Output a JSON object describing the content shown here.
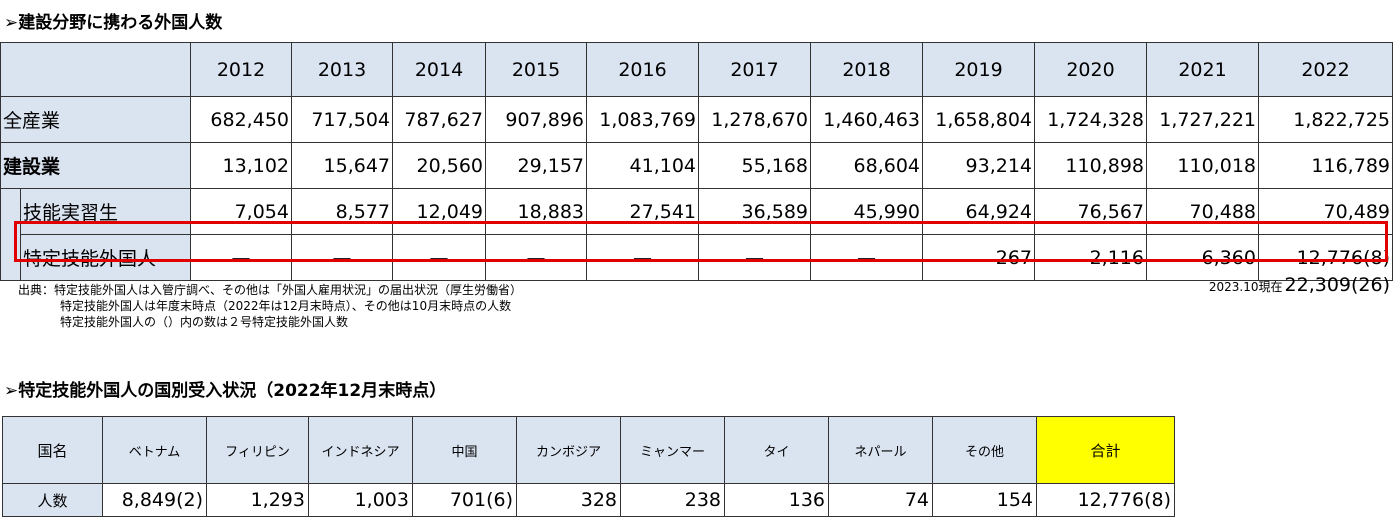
{
  "section1": {
    "heading": "➢建設分野に携わる外国人数",
    "years": [
      "2012",
      "2013",
      "2014",
      "2015",
      "2016",
      "2017",
      "2018",
      "2019",
      "2020",
      "2021",
      "2022"
    ],
    "rows": [
      {
        "label": "全産業",
        "values": [
          "682,450",
          "717,504",
          "787,627",
          "907,896",
          "1,083,769",
          "1,278,670",
          "1,460,463",
          "1,658,804",
          "1,724,328",
          "1,727,221",
          "1,822,725"
        ]
      },
      {
        "label": "建設業",
        "values": [
          "13,102",
          "15,647",
          "20,560",
          "29,157",
          "41,104",
          "55,168",
          "68,604",
          "93,214",
          "110,898",
          "110,018",
          "116,789"
        ]
      },
      {
        "label": "技能実習生",
        "values": [
          "7,054",
          "8,577",
          "12,049",
          "18,883",
          "27,541",
          "36,589",
          "45,990",
          "64,924",
          "76,567",
          "70,488",
          "70,489"
        ]
      },
      {
        "label": "特定技能外国人",
        "values": [
          "—",
          "—",
          "—",
          "—",
          "—",
          "—",
          "—",
          "267",
          "2,116",
          "6,360",
          "12,776(8)"
        ]
      }
    ],
    "notes": [
      "出典：特定技能外国人は入管庁調べ、その他は「外国人雇用状況」の届出状況（厚生労働省）",
      "特定技能外国人は年度末時点（2022年は12月末時点）、その他は10月末時点の人数",
      "特定技能外国人の（）内の数は２号特定技能外国人数"
    ],
    "as_of_label": "2023.10現在",
    "as_of_value": "22,309(26)"
  },
  "section2": {
    "heading": "➢特定技能外国人の国別受入状況（2022年12月末時点）",
    "header_label": "国名",
    "countries": [
      "ベトナム",
      "フィリピン",
      "インドネシア",
      "中国",
      "カンボジア",
      "ミャンマー",
      "タイ",
      "ネパール",
      "その他",
      "合計"
    ],
    "row_label": "人数",
    "values": [
      "8,849(2)",
      "1,293",
      "1,003",
      "701(6)",
      "328",
      "238",
      "136",
      "74",
      "154",
      "12,776(8)"
    ],
    "total_highlight_color": "#ffff00"
  }
}
